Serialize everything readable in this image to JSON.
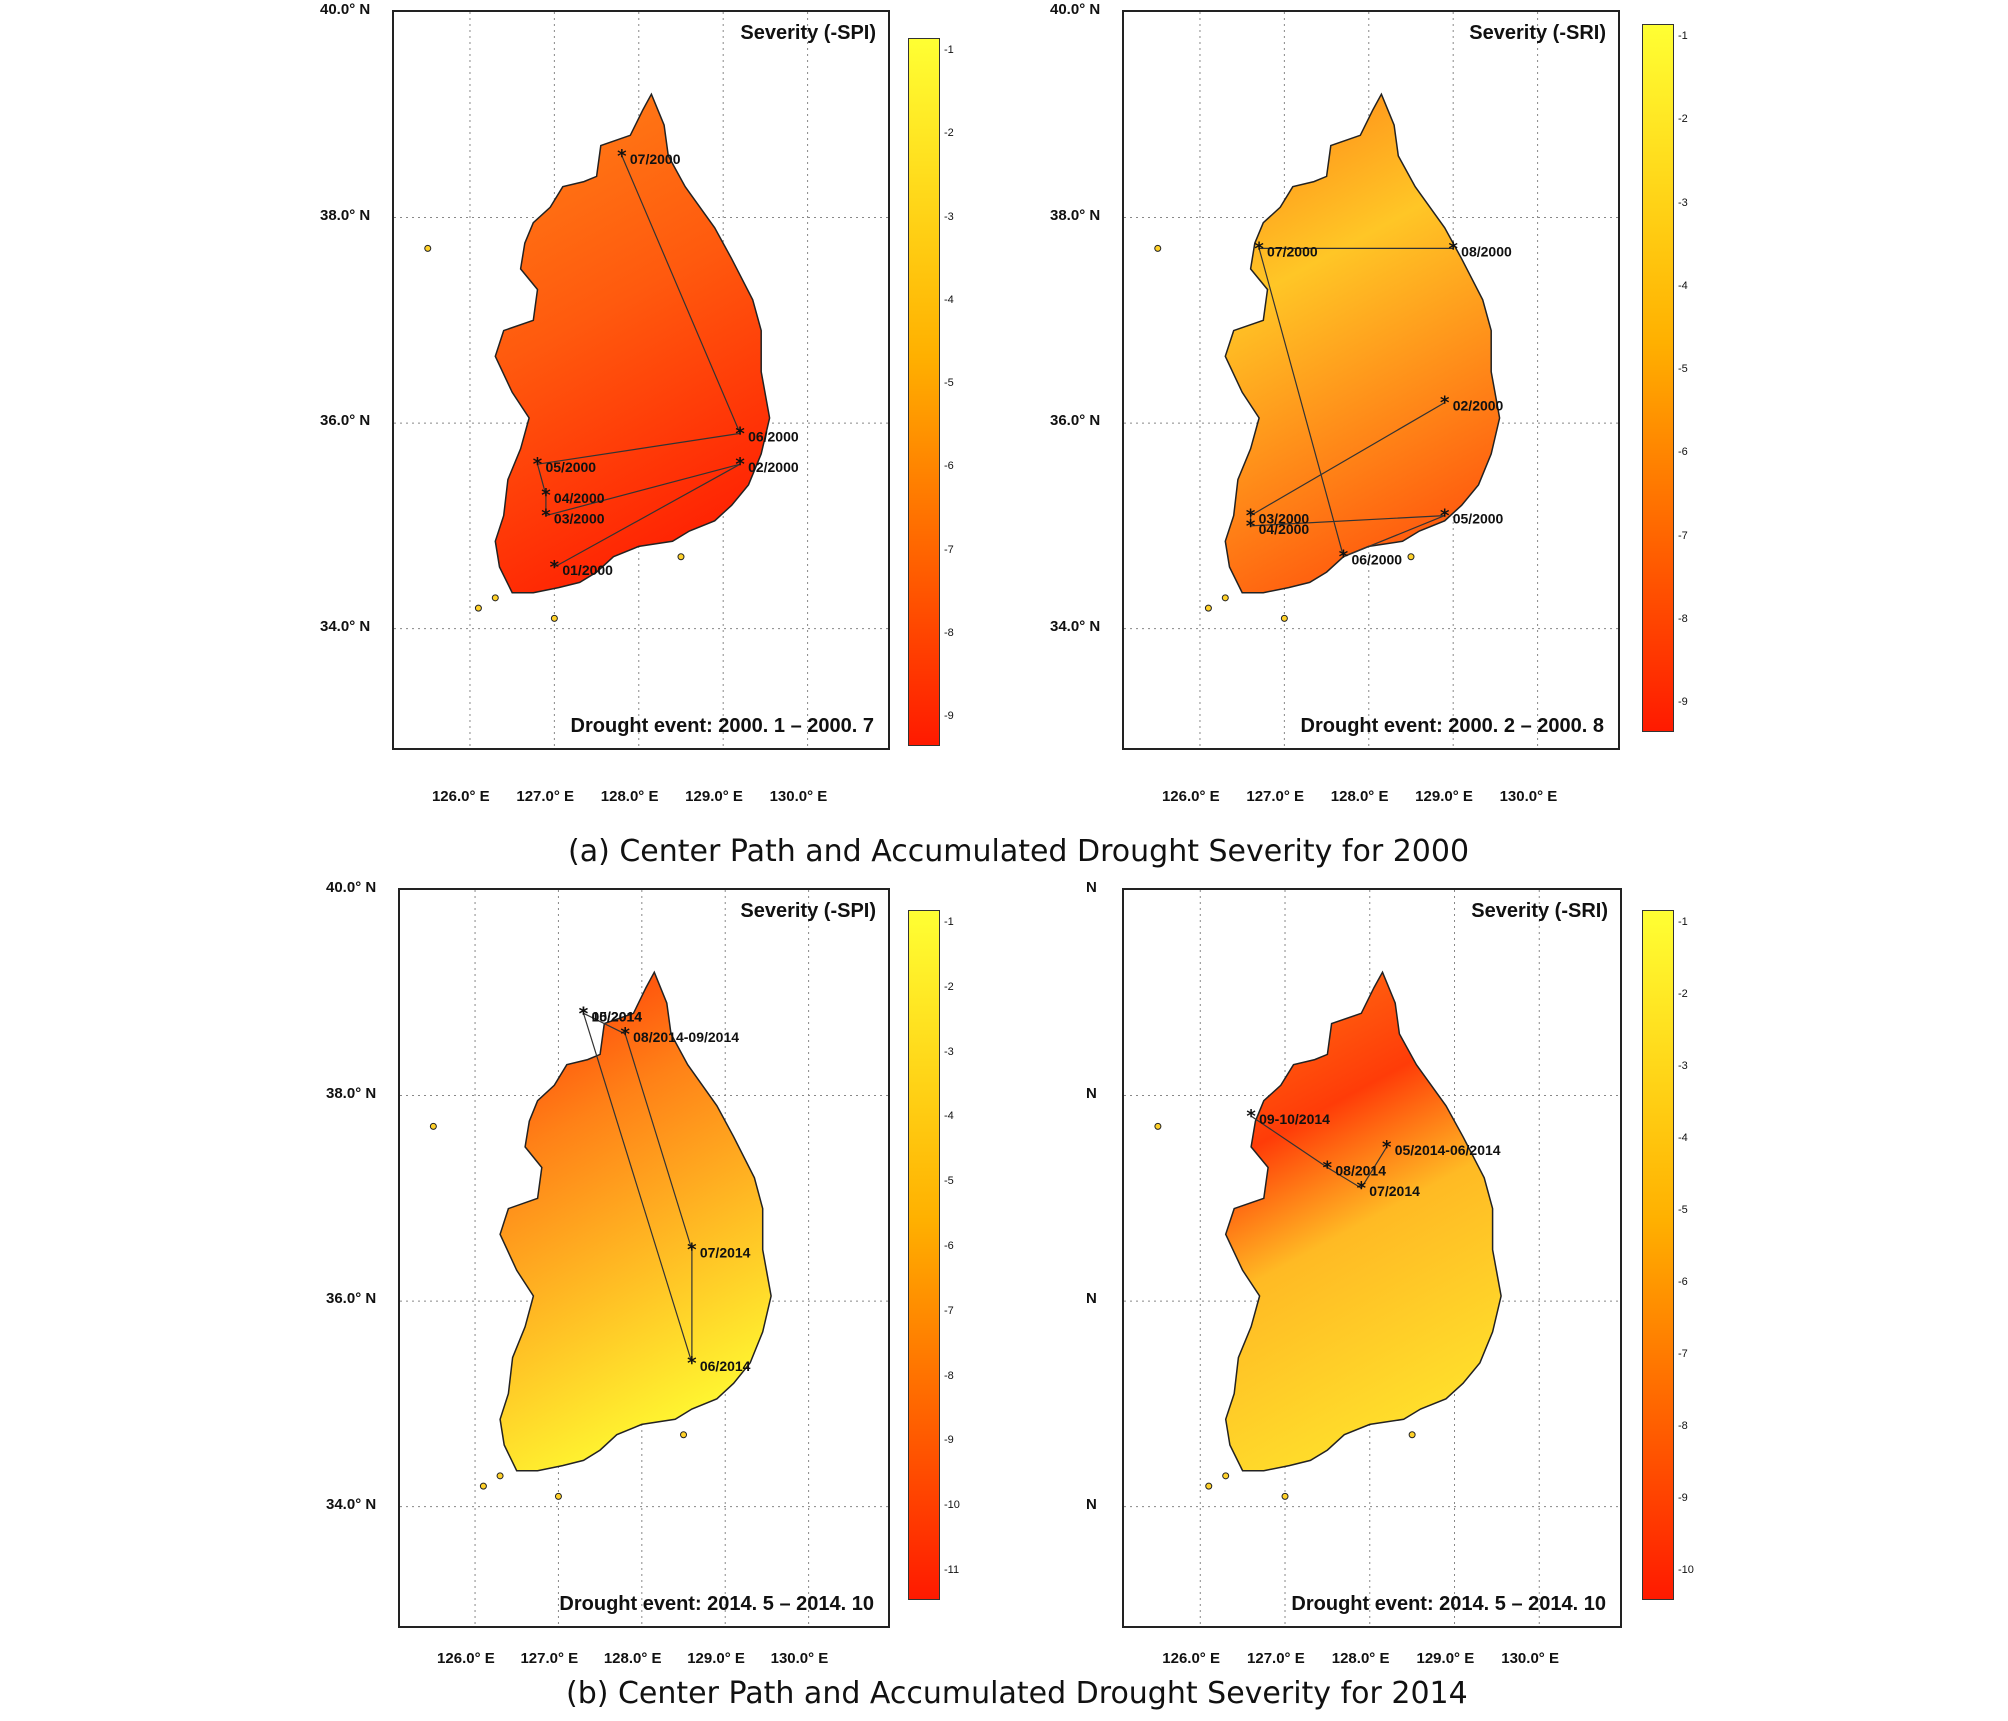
{
  "captions": {
    "a": "(a) Center Path and Accumulated Drought Severity for 2000",
    "b": "(b) Center Path and Accumulated Drought Severity for 2014"
  },
  "map_data": {
    "lon_ticks": [
      "126.0° E",
      "127.0° E",
      "128.0° E",
      "129.0° E",
      "130.0° E"
    ],
    "lat_ticks": [
      "40.0° N",
      "38.0° N",
      "36.0° N",
      "34.0° N"
    ],
    "colors": {
      "high": "#ff1a00",
      "low": "#ffff33"
    },
    "panels": [
      {
        "severity_label": "Severity (-SPI)",
        "event_label": "Drought event: 2000. 1 – 2000. 7",
        "colorbar_ticks": [
          "-1",
          "-2",
          "-3",
          "-4",
          "-5",
          "-6",
          "-7",
          "-8",
          "-9"
        ],
        "fill_level": 0.62,
        "path": [
          {
            "label": "01/2000",
            "lon": 127.0,
            "lat": 34.6
          },
          {
            "label": "02/2000",
            "lon": 129.2,
            "lat": 35.6
          },
          {
            "label": "03/2000",
            "lon": 126.9,
            "lat": 35.1
          },
          {
            "label": "04/2000",
            "lon": 126.9,
            "lat": 35.3
          },
          {
            "label": "05/2000",
            "lon": 126.8,
            "lat": 35.6
          },
          {
            "label": "06/2000",
            "lon": 129.2,
            "lat": 35.9
          },
          {
            "label": "07/2000",
            "lon": 127.8,
            "lat": 38.6
          }
        ]
      },
      {
        "severity_label": "Severity (-SRI)",
        "event_label": "Drought event: 2000. 2 – 2000. 8",
        "colorbar_ticks": [
          "-1",
          "-2",
          "-3",
          "-4",
          "-5",
          "-6",
          "-7",
          "-8",
          "-9"
        ],
        "fill_level": 0.45,
        "path": [
          {
            "label": "02/2000",
            "lon": 128.9,
            "lat": 36.2
          },
          {
            "label": "03/2000",
            "lon": 126.6,
            "lat": 35.1
          },
          {
            "label": "04/2000",
            "lon": 126.6,
            "lat": 35.0
          },
          {
            "label": "05/2000",
            "lon": 128.9,
            "lat": 35.1
          },
          {
            "label": "06/2000",
            "lon": 127.7,
            "lat": 34.7
          },
          {
            "label": "07/2000",
            "lon": 126.7,
            "lat": 37.7
          },
          {
            "label": "08/2000",
            "lon": 129.0,
            "lat": 37.7
          }
        ]
      },
      {
        "severity_label": "Severity (-SPI)",
        "event_label": "Drought event: 2014. 5 – 2014. 10",
        "colorbar_ticks": [
          "-1",
          "-2",
          "-3",
          "-4",
          "-5",
          "-6",
          "-7",
          "-8",
          "-9",
          "-10",
          "-11"
        ],
        "fill_level": 0.3,
        "path": [
          {
            "label": "05/2014",
            "lon": 127.3,
            "lat": 38.8
          },
          {
            "label": "06/2014",
            "lon": 128.6,
            "lat": 35.4
          },
          {
            "label": "07/2014",
            "lon": 128.6,
            "lat": 36.5
          },
          {
            "label": "08/2014-09/2014",
            "lon": 127.8,
            "lat": 38.6
          },
          {
            "label": "10/2014",
            "lon": 127.3,
            "lat": 38.8
          }
        ]
      },
      {
        "severity_label": "Severity (-SRI)",
        "event_label": "Drought event: 2014. 5 – 2014. 10",
        "colorbar_ticks": [
          "-1",
          "-2",
          "-3",
          "-4",
          "-5",
          "-6",
          "-7",
          "-8",
          "-9",
          "-10"
        ],
        "fill_level": 0.3,
        "path": [
          {
            "label": "05/2014-06/2014",
            "lon": 128.2,
            "lat": 37.5
          },
          {
            "label": "07/2014",
            "lon": 127.9,
            "lat": 37.1
          },
          {
            "label": "08/2014",
            "lon": 127.5,
            "lat": 37.3
          },
          {
            "label": "09-10/2014",
            "lon": 126.6,
            "lat": 37.8
          }
        ]
      }
    ]
  }
}
